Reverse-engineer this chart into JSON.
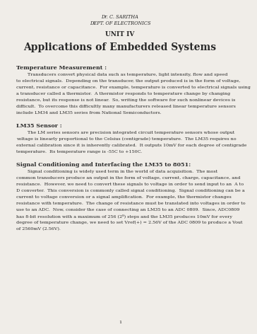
{
  "bg_color": "#f0ede8",
  "header_line1": "Dr. C. SARITHA",
  "header_line2": "DEPT. OF ELECTRONICS",
  "unit_title": "UNIT IV",
  "main_title": "Applications of Embedded Systems",
  "section1_heading": "Temperature Measurement :",
  "section1_indent": "        Transducers convert physical data such as temperature, light intensity, flow and speed",
  "section1_lines": [
    "to electrical signals.  Depending on the transducer, the output produced is in the form of voltage,",
    "current, resistance or capacitance.  For example, temperature is converted to electrical signals using",
    "a transducer called a thermistor.  A thermistor responds to temperature change by changing",
    "resistance, but its response is not linear.  So, writing the software for such nonlinear devices is",
    "difficult.  To overcome this difficultly many manufacturers released linear temperature sensors",
    "include LM34 and LM35 series from National Semiconductors."
  ],
  "section2_heading": "LM35 Sensor :",
  "section2_indent": "        The LM series sensors are precision integrated circuit temperature sensors whose output",
  "section2_lines": [
    "voltage is linearly proportional to the Celsius (centigrade) temperature.  The LM35 requires no",
    "external calibration since it is inherently calibrated.  It outputs 10mV for each degree of centigrade",
    "temperature.  Its temperature range is -55C to +150C."
  ],
  "section3_heading": "Signal Conditioning and Interfacing the LM35 to 8051:",
  "section3_indent": "        Signal conditioning is widely used term in the world of data acquisition.  The most",
  "section3_lines": [
    "common transducers produce an output in the form of voltage, current, charge, capacitance, and",
    "resistance.  However, we need to convert these signals to voltage in order to send input to an  A to",
    "D converter.  This conversion is commonly called signal conditioning.  Signal conditioning can be a",
    "current to voltage conversion or a signal amplification.  For example, the thermistor changes",
    "resistance with temperature.  The change of resistance must be translated into voltages in order to",
    "use to an ADC.  Now, consider the case of connecting an LM35 to an ADC 0809.  Since, ADC0809",
    "has 8-bit resolution with a maximum of 256 (2⁸) steps and the LM35 produces 10mV for every",
    "degree of temperature change, we need to set Vref(+) = 2.56V of the ADC 0809 to produce a Vout",
    "of 2560mV (2.56V)."
  ],
  "page_number": "1",
  "text_color": "#2a2a2a",
  "font_family": "DejaVu Serif"
}
